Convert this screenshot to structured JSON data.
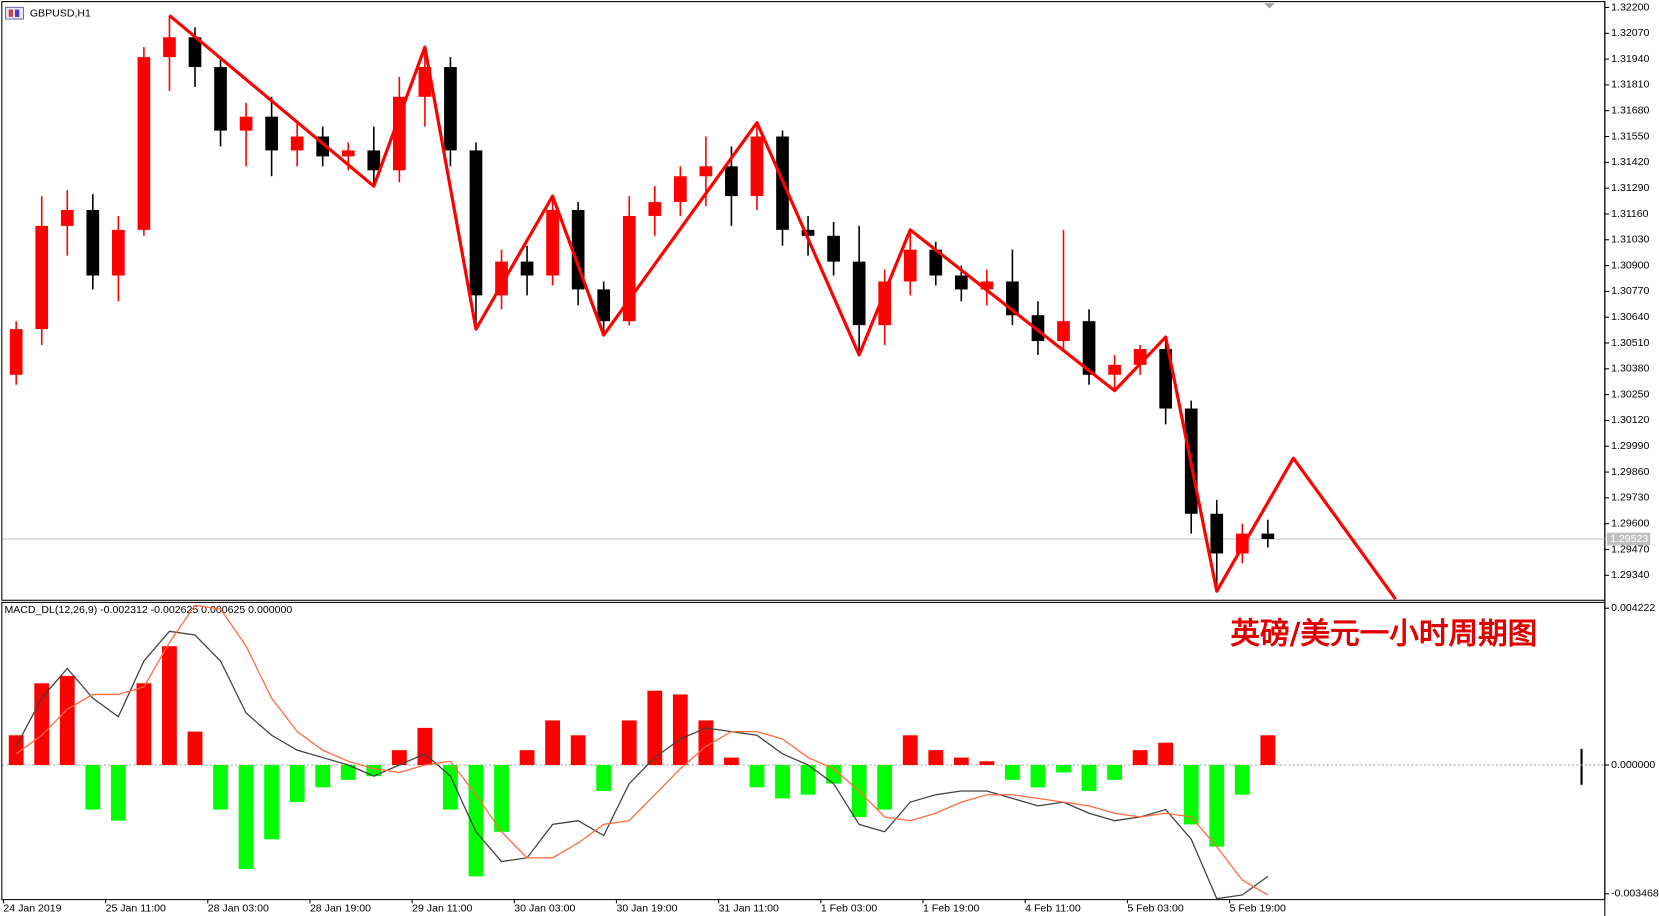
{
  "chart_data": [
    {
      "type": "candlestick",
      "title": "GBPUSD,H1",
      "annotation": "英磅/美元一小时周期图",
      "categories": [
        "24 Jan 2019",
        null,
        null,
        null,
        "25 Jan 11:00",
        null,
        null,
        null,
        "28 Jan 03:00",
        null,
        null,
        null,
        "28 Jan 19:00",
        null,
        null,
        null,
        "29 Jan 11:00",
        null,
        null,
        null,
        "30 Jan 03:00",
        null,
        null,
        null,
        "30 Jan 19:00",
        null,
        null,
        null,
        "31 Jan 11:00",
        null,
        null,
        null,
        "1 Feb 03:00",
        null,
        null,
        null,
        "1 Feb 19:00",
        null,
        null,
        null,
        "4 Feb 11:00",
        null,
        null,
        null,
        "5 Feb 03:00",
        null,
        null,
        null,
        "5 Feb 19:00",
        null
      ],
      "open": [
        1.3035,
        1.3058,
        1.311,
        1.3118,
        1.3085,
        1.3108,
        1.3195,
        1.3205,
        1.319,
        1.3158,
        1.3165,
        1.3148,
        1.3155,
        1.3145,
        1.3148,
        1.3138,
        1.3175,
        1.319,
        1.3148,
        1.3075,
        1.3092,
        1.3085,
        1.3118,
        1.3078,
        1.3062,
        1.3115,
        1.3122,
        1.3135,
        1.314,
        1.3125,
        1.3155,
        1.3108,
        1.3105,
        1.3092,
        1.306,
        1.3082,
        1.3098,
        1.3085,
        1.3078,
        1.3082,
        1.3065,
        1.3052,
        1.3062,
        1.3035,
        1.304,
        1.3048,
        1.3018,
        1.2965,
        1.2945,
        1.2955
      ],
      "high": [
        1.3062,
        1.3125,
        1.3128,
        1.3126,
        1.3115,
        1.32,
        1.3216,
        1.321,
        1.3195,
        1.3172,
        1.3175,
        1.3162,
        1.316,
        1.3152,
        1.316,
        1.3185,
        1.32,
        1.3195,
        1.3152,
        1.3098,
        1.31,
        1.3125,
        1.3122,
        1.3082,
        1.3125,
        1.313,
        1.314,
        1.3155,
        1.315,
        1.3162,
        1.3158,
        1.3115,
        1.3112,
        1.311,
        1.3088,
        1.3108,
        1.3102,
        1.309,
        1.3088,
        1.3098,
        1.3072,
        1.3108,
        1.3068,
        1.3045,
        1.305,
        1.3054,
        1.3022,
        1.2972,
        1.296,
        1.2962
      ],
      "low": [
        1.303,
        1.305,
        1.3095,
        1.3078,
        1.3072,
        1.3105,
        1.3178,
        1.318,
        1.315,
        1.314,
        1.3135,
        1.314,
        1.314,
        1.3138,
        1.313,
        1.3132,
        1.316,
        1.314,
        1.3058,
        1.3068,
        1.3075,
        1.308,
        1.307,
        1.3055,
        1.306,
        1.3105,
        1.3115,
        1.312,
        1.311,
        1.3118,
        1.31,
        1.3095,
        1.3085,
        1.3045,
        1.305,
        1.3075,
        1.308,
        1.3072,
        1.307,
        1.306,
        1.3045,
        1.3048,
        1.303,
        1.3027,
        1.3035,
        1.301,
        1.2955,
        1.2926,
        1.294,
        1.2948
      ],
      "close": [
        1.3058,
        1.311,
        1.3118,
        1.3085,
        1.3108,
        1.3195,
        1.3205,
        1.319,
        1.3158,
        1.3165,
        1.3148,
        1.3155,
        1.3145,
        1.3148,
        1.3138,
        1.3175,
        1.319,
        1.3148,
        1.3075,
        1.3092,
        1.3085,
        1.3118,
        1.3078,
        1.3062,
        1.3115,
        1.3122,
        1.3135,
        1.314,
        1.3125,
        1.3155,
        1.3108,
        1.3105,
        1.3092,
        1.306,
        1.3082,
        1.3098,
        1.3085,
        1.3078,
        1.3082,
        1.3065,
        1.3052,
        1.3062,
        1.3035,
        1.304,
        1.3048,
        1.3018,
        1.2965,
        1.2945,
        1.2955,
        1.29523
      ],
      "up_color": "#ff0000",
      "down_color": "#000000",
      "current_price": 1.29523,
      "zigzag": {
        "color": "#ff0000",
        "x": [
          6,
          14,
          16,
          18,
          21,
          23,
          29,
          33,
          35,
          43,
          45,
          47,
          50,
          54
        ],
        "values": [
          1.3216,
          1.313,
          1.32,
          1.3058,
          1.3125,
          1.3055,
          1.3162,
          1.3045,
          1.3108,
          1.3027,
          1.3054,
          1.2926,
          1.2993,
          1.2922
        ]
      },
      "ylim": [
        1.29217,
        1.32227
      ],
      "yticks": [
        {
          "value": 1.322,
          "label": "1.32200"
        },
        {
          "value": 1.3207,
          "label": "1.32070"
        },
        {
          "value": 1.3194,
          "label": "1.31940"
        },
        {
          "value": 1.3181,
          "label": "1.31810"
        },
        {
          "value": 1.3168,
          "label": "1.31680"
        },
        {
          "value": 1.3155,
          "label": "1.31550"
        },
        {
          "value": 1.3142,
          "label": "1.31420"
        },
        {
          "value": 1.3129,
          "label": "1.31290"
        },
        {
          "value": 1.3116,
          "label": "1.31160"
        },
        {
          "value": 1.3103,
          "label": "1.31030"
        },
        {
          "value": 1.309,
          "label": "1.30900"
        },
        {
          "value": 1.3077,
          "label": "1.30770"
        },
        {
          "value": 1.3064,
          "label": "1.30640"
        },
        {
          "value": 1.3051,
          "label": "1.30510"
        },
        {
          "value": 1.3038,
          "label": "1.30380"
        },
        {
          "value": 1.3025,
          "label": "1.30250"
        },
        {
          "value": 1.3012,
          "label": "1.30120"
        },
        {
          "value": 1.2999,
          "label": "1.29990"
        },
        {
          "value": 1.2986,
          "label": "1.29860"
        },
        {
          "value": 1.2973,
          "label": "1.29730"
        },
        {
          "value": 1.296,
          "label": "1.29600"
        },
        {
          "value": 1.2947,
          "label": "1.29470"
        },
        {
          "value": 1.2934,
          "label": "1.29340"
        }
      ]
    },
    {
      "type": "macd",
      "title": "MACD_DL(12,26,9) -0.002312 -0.002625 0.000625 0.000000",
      "histogram": [
        0.0008,
        0.0022,
        0.0024,
        -0.0012,
        -0.0015,
        0.0022,
        0.0032,
        0.0009,
        -0.0012,
        -0.0028,
        -0.002,
        -0.001,
        -0.0006,
        -0.0004,
        -0.0003,
        0.0004,
        0.001,
        -0.0012,
        -0.003,
        -0.0018,
        0.0004,
        0.0012,
        0.0008,
        -0.0007,
        0.0012,
        0.002,
        0.0019,
        0.0012,
        0.0002,
        -0.0006,
        -0.0009,
        -0.0008,
        -0.0005,
        -0.0014,
        -0.0012,
        0.0008,
        0.0004,
        0.0002,
        0.0001,
        -0.0004,
        -0.0006,
        -0.0002,
        -0.0007,
        -0.0004,
        0.0004,
        0.0006,
        -0.0016,
        -0.0022,
        -0.0008,
        0.0008
      ],
      "positive_color": "#ff0000",
      "negative_color": "#00ff00",
      "macd_line": {
        "color": "#404040",
        "values": [
          0.0005,
          0.0018,
          0.0026,
          0.0018,
          0.0013,
          0.0028,
          0.0036,
          0.0035,
          0.0028,
          0.0014,
          0.0008,
          0.0004,
          0.0002,
          0.0,
          -0.0003,
          0.0,
          0.0003,
          -0.0003,
          -0.0018,
          -0.0026,
          -0.0025,
          -0.0016,
          -0.0015,
          -0.0019,
          -0.0005,
          0.0002,
          0.0007,
          0.001,
          0.0009,
          0.0008,
          0.0003,
          0.0,
          -0.0005,
          -0.0016,
          -0.0018,
          -0.001,
          -0.0008,
          -0.0007,
          -0.0007,
          -0.0009,
          -0.0011,
          -0.001,
          -0.0013,
          -0.0015,
          -0.0014,
          -0.0012,
          -0.002,
          -0.0036,
          -0.0035,
          -0.003
        ]
      },
      "signal_line": {
        "color": "#ff6a3d",
        "values": [
          0.0003,
          0.0008,
          0.0015,
          0.0019,
          0.0019,
          0.0021,
          0.0033,
          0.0043,
          0.0042,
          0.0032,
          0.0018,
          0.0009,
          0.0004,
          0.0001,
          -0.0001,
          -0.0002,
          0.0,
          0.0001,
          -0.0008,
          -0.0018,
          -0.0025,
          -0.0025,
          -0.0021,
          -0.0016,
          -0.0015,
          -0.0008,
          -0.0001,
          0.0005,
          0.0009,
          0.0009,
          0.0007,
          0.0002,
          -0.0001,
          -0.0007,
          -0.0014,
          -0.0015,
          -0.0013,
          -0.001,
          -0.0008,
          -0.0008,
          -0.0009,
          -0.001,
          -0.0011,
          -0.0013,
          -0.0014,
          -0.0013,
          -0.0014,
          -0.0022,
          -0.0031,
          -0.0035
        ]
      },
      "ylim": [
        -0.003611,
        0.004365
      ],
      "yticks": [
        {
          "value": 0.004222,
          "label": "0.004222"
        },
        {
          "value": 0,
          "label": "0.000000"
        },
        {
          "value": -0.003468,
          "label": "-0.003468"
        }
      ]
    }
  ]
}
